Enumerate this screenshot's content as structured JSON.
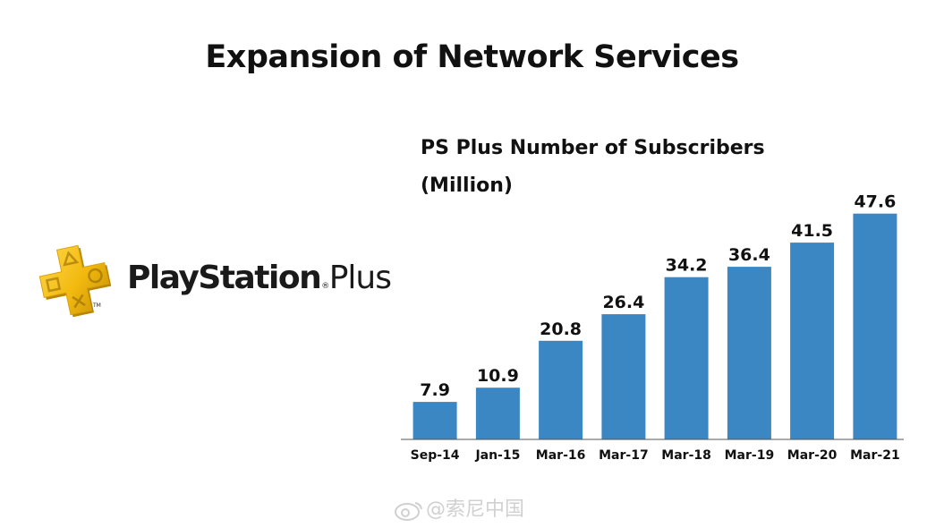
{
  "slide": {
    "title": "Expansion of Network Services"
  },
  "logo": {
    "wordmark_main": "PlayStation",
    "wordmark_reg": "®",
    "wordmark_plus": "Plus",
    "tm": "TM"
  },
  "watermark": {
    "text": "@索尼中国"
  },
  "colors": {
    "bar": "#3b87c4",
    "logo_gold": "#f2c017",
    "logo_gold_dark": "#c99708",
    "axis": "#555555"
  },
  "chart_data": {
    "type": "bar",
    "title": "PS Plus Number of Subscribers",
    "subtitle": "(Million)",
    "categories": [
      "Sep-14",
      "Jan-15",
      "Mar-16",
      "Mar-17",
      "Mar-18",
      "Mar-19",
      "Mar-20",
      "Mar-21"
    ],
    "values": [
      7.9,
      10.9,
      20.8,
      26.4,
      34.2,
      36.4,
      41.5,
      47.6
    ],
    "data_labels": [
      "7.9",
      "10.9",
      "20.8",
      "26.4",
      "34.2",
      "36.4",
      "41.5",
      "47.6"
    ],
    "ylim": [
      0,
      50
    ],
    "grid": false,
    "legend": "none"
  }
}
